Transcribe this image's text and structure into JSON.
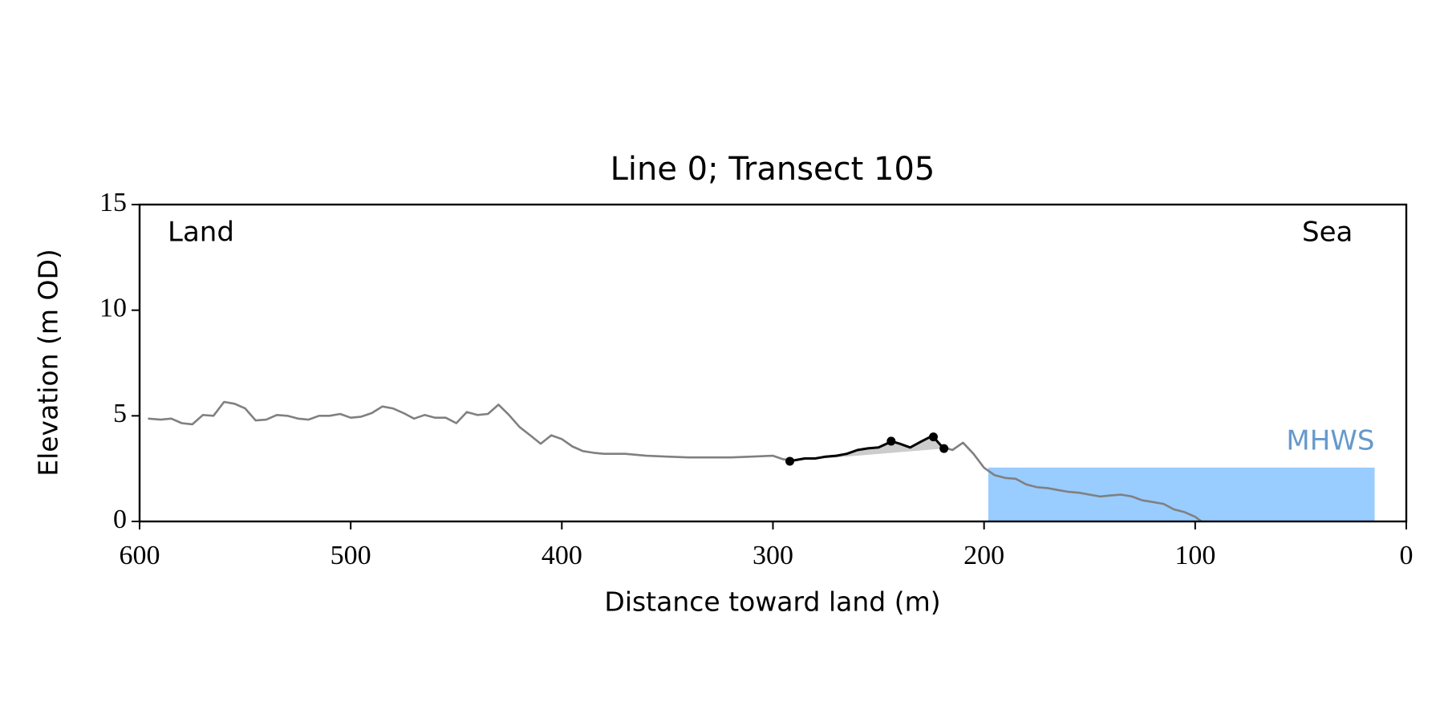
{
  "chart_data": {
    "type": "line",
    "title": "Line 0; Transect 105",
    "xlabel": "Distance toward land (m)",
    "ylabel": "Elevation (m OD)",
    "xlim": [
      600,
      0
    ],
    "ylim": [
      0,
      15
    ],
    "xticks": [
      600,
      500,
      400,
      300,
      200,
      100,
      0
    ],
    "yticks": [
      0,
      5,
      10,
      15
    ],
    "annotations": [
      "Land",
      "Sea"
    ],
    "series": [
      {
        "color": "#808080",
        "x": [
          596,
          590,
          585,
          580,
          575,
          570,
          565,
          560,
          555,
          550,
          545,
          540,
          535,
          530,
          525,
          520,
          515,
          510,
          505,
          500,
          495,
          490,
          485,
          480,
          475,
          470,
          465,
          460,
          455,
          450,
          445,
          440,
          435,
          430,
          425,
          420,
          415,
          410,
          405,
          400,
          395,
          390,
          385,
          380,
          370,
          360,
          350,
          340,
          330,
          320,
          310,
          300,
          295,
          290,
          285,
          280,
          275,
          270,
          265,
          260,
          255,
          250,
          245,
          240,
          235,
          230,
          225,
          220,
          215,
          210,
          205,
          200,
          195,
          190,
          185,
          180,
          175,
          170,
          165,
          160,
          155,
          150,
          145,
          140,
          135,
          130,
          125,
          120,
          115,
          110,
          105,
          100,
          97
        ],
        "values": [
          4.87,
          4.82,
          4.87,
          4.65,
          4.6,
          5.04,
          5.0,
          5.66,
          5.57,
          5.35,
          4.78,
          4.82,
          5.04,
          5.0,
          4.87,
          4.82,
          5.0,
          5.0,
          5.09,
          4.91,
          4.96,
          5.13,
          5.44,
          5.35,
          5.13,
          4.87,
          5.04,
          4.91,
          4.91,
          4.65,
          5.18,
          5.04,
          5.09,
          5.53,
          5.04,
          4.47,
          4.08,
          3.68,
          4.08,
          3.9,
          3.55,
          3.33,
          3.25,
          3.2,
          3.2,
          3.11,
          3.07,
          3.03,
          3.03,
          3.03,
          3.07,
          3.11,
          2.94,
          2.89,
          2.98,
          2.98,
          3.07,
          3.11,
          3.2,
          3.38,
          3.46,
          3.5,
          3.73,
          3.68,
          3.5,
          3.77,
          4.03,
          3.55,
          3.38,
          3.73,
          3.2,
          2.54,
          2.19,
          2.06,
          2.02,
          1.75,
          1.62,
          1.58,
          1.49,
          1.4,
          1.36,
          1.27,
          1.18,
          1.23,
          1.27,
          1.18,
          1.0,
          0.92,
          0.83,
          0.57,
          0.44,
          0.22,
          0
        ]
      },
      {
        "color": "#000000",
        "shade": "#cccccc",
        "x": [
          292,
          290,
          285,
          280,
          275,
          270,
          265,
          260,
          255,
          250,
          245,
          244,
          240,
          235,
          230,
          225,
          224,
          220,
          219
        ],
        "values": [
          2.85,
          2.89,
          2.98,
          2.98,
          3.07,
          3.11,
          3.2,
          3.38,
          3.46,
          3.5,
          3.73,
          3.8,
          3.68,
          3.5,
          3.77,
          4.03,
          4.0,
          3.55,
          3.45
        ]
      }
    ],
    "markers": {
      "color": "#000000",
      "x": [
        292,
        244,
        224,
        219
      ],
      "values": [
        2.85,
        3.8,
        4.0,
        3.45
      ]
    },
    "mhws": {
      "label": "MHWS",
      "value": 2.55,
      "x": [
        198,
        15
      ],
      "color": "#99ccff",
      "label_color": "#6699cc"
    }
  }
}
